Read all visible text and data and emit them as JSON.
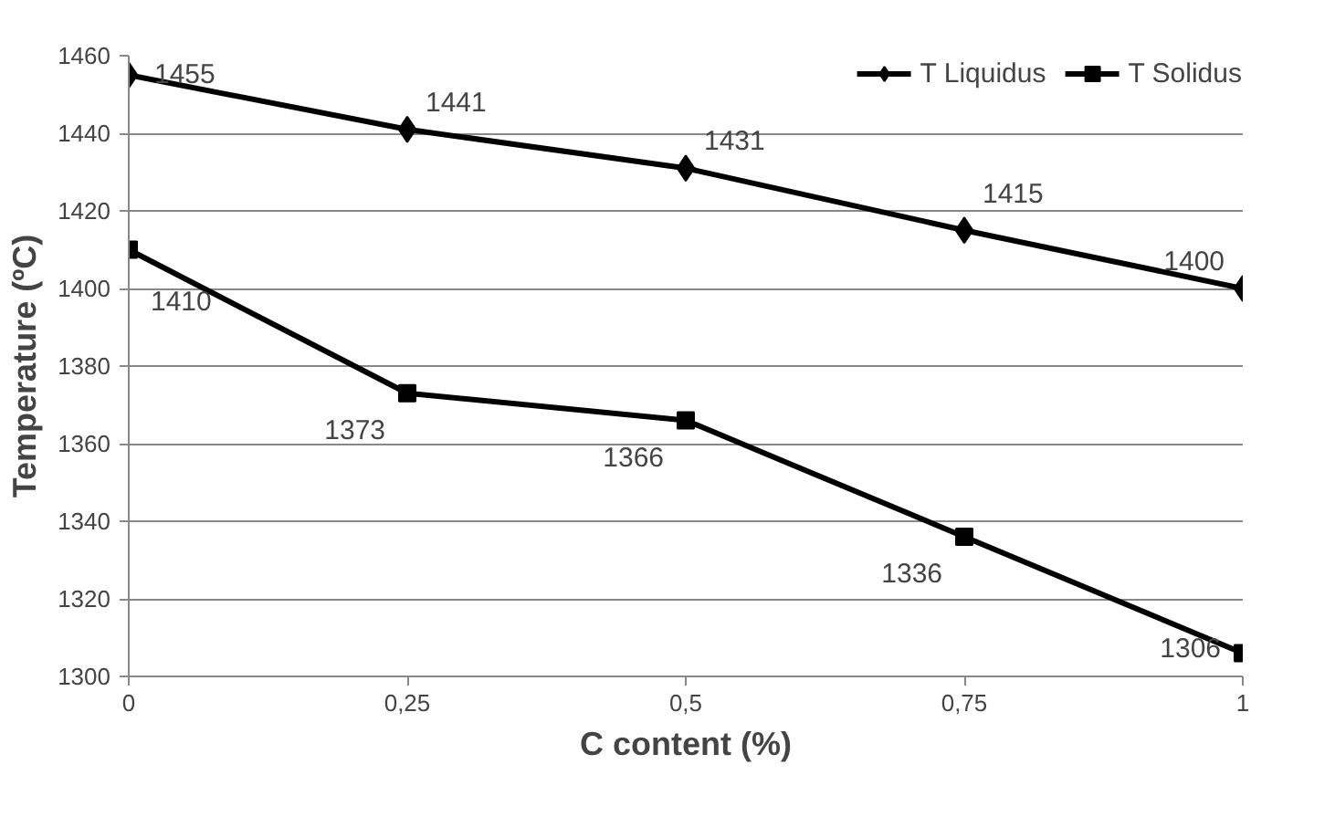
{
  "chart_data": {
    "type": "line",
    "xlabel": "C content (%)",
    "ylabel": "Temperature (ºC)",
    "x": [
      0,
      0.25,
      0.5,
      0.75,
      1
    ],
    "series": [
      {
        "name": "T Liquidus",
        "color": "#000000",
        "marker": "diamond",
        "values": [
          1455,
          1441,
          1431,
          1415,
          1400
        ]
      },
      {
        "name": "T Solidus",
        "color": "#000000",
        "marker": "square",
        "values": [
          1410,
          1373,
          1366,
          1336,
          1306
        ]
      }
    ],
    "xlim": [
      0,
      1
    ],
    "xticks": [
      0,
      {
        "value": 0.25,
        "label": "0,25"
      },
      {
        "value": 0.5,
        "label": "0,5"
      },
      {
        "value": 0.75,
        "label": "0,75"
      },
      1
    ],
    "ylim": [
      1300,
      1460
    ],
    "yticks": [
      1300,
      1320,
      1340,
      1360,
      1380,
      1400,
      1420,
      1440,
      1460
    ],
    "grid": "y",
    "legend": "top right",
    "data_labels": true,
    "line_style": "solid"
  }
}
